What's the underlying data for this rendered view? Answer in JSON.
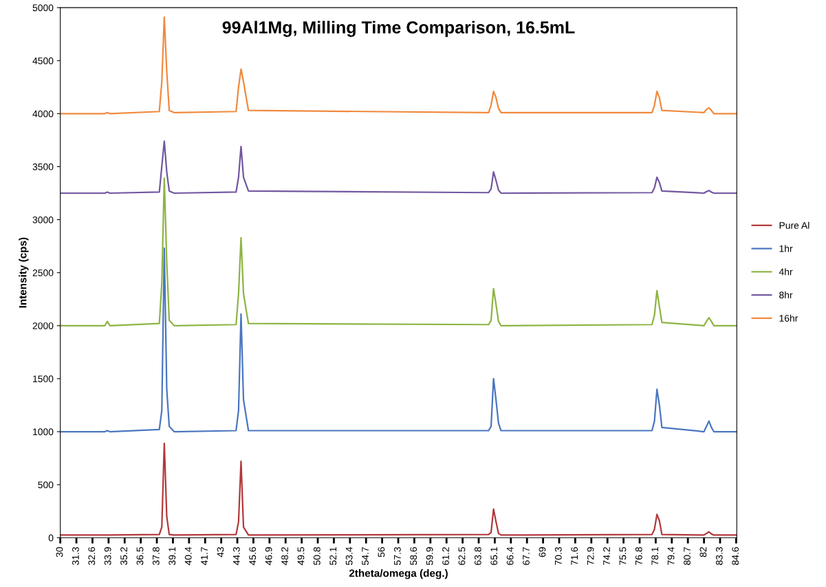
{
  "chart_data": {
    "type": "line",
    "title": "99Al1Mg, Milling Time Comparison, 16.5mL",
    "xlabel": "2theta/omega (deg.)",
    "ylabel": "Intensity (cps)",
    "x": [
      30,
      33.6,
      33.8,
      34.0,
      38.0,
      38.2,
      38.4,
      38.6,
      38.8,
      39.2,
      44.2,
      44.4,
      44.6,
      44.8,
      45.2,
      64.6,
      64.8,
      65.0,
      65.2,
      65.4,
      65.6,
      77.8,
      78.0,
      78.2,
      78.4,
      78.6,
      82.0,
      82.2,
      82.4,
      82.6,
      82.8,
      84.65
    ],
    "series": [
      {
        "name": "Pure Al",
        "color": "#b2383a",
        "values": [
          25,
          25,
          25,
          25,
          30,
          100,
          890,
          200,
          30,
          25,
          30,
          150,
          720,
          100,
          25,
          30,
          50,
          270,
          150,
          40,
          25,
          30,
          80,
          220,
          160,
          30,
          25,
          40,
          55,
          35,
          25,
          25
        ]
      },
      {
        "name": "1hr",
        "color": "#4a76c0",
        "values": [
          1000,
          1000,
          1010,
          1000,
          1020,
          1200,
          2730,
          1400,
          1050,
          1000,
          1010,
          1200,
          2110,
          1300,
          1010,
          1010,
          1050,
          1500,
          1300,
          1080,
          1010,
          1010,
          1100,
          1400,
          1250,
          1040,
          1000,
          1050,
          1100,
          1040,
          1000,
          1000
        ]
      },
      {
        "name": "4hr",
        "color": "#8db443",
        "values": [
          2000,
          2000,
          2040,
          2000,
          2020,
          2400,
          3390,
          2600,
          2050,
          2000,
          2010,
          2300,
          2830,
          2300,
          2020,
          2010,
          2050,
          2350,
          2200,
          2040,
          2000,
          2010,
          2100,
          2330,
          2180,
          2030,
          2000,
          2040,
          2075,
          2040,
          2000,
          2000
        ]
      },
      {
        "name": "8hr",
        "color": "#7257a0",
        "values": [
          3250,
          3250,
          3260,
          3250,
          3260,
          3500,
          3740,
          3450,
          3270,
          3250,
          3260,
          3400,
          3690,
          3400,
          3270,
          3255,
          3290,
          3450,
          3370,
          3280,
          3250,
          3255,
          3300,
          3400,
          3350,
          3270,
          3250,
          3265,
          3275,
          3260,
          3250,
          3250
        ]
      },
      {
        "name": "16hr",
        "color": "#f0893e",
        "values": [
          4000,
          4000,
          4010,
          4000,
          4020,
          4300,
          4910,
          4400,
          4030,
          4010,
          4020,
          4250,
          4420,
          4300,
          4030,
          4010,
          4080,
          4210,
          4150,
          4050,
          4010,
          4010,
          4080,
          4210,
          4150,
          4030,
          4010,
          4040,
          4055,
          4030,
          4000,
          4000
        ]
      }
    ],
    "xlim": [
      30,
      84.65
    ],
    "xticks": [
      30,
      31.3,
      32.6,
      33.9,
      35.2,
      36.5,
      37.8,
      39.1,
      40.4,
      41.7,
      43,
      44.3,
      45.6,
      46.9,
      48.2,
      49.5,
      50.8,
      52.1,
      53.4,
      54.7,
      56,
      57.3,
      58.6,
      59.9,
      61.2,
      62.5,
      63.8,
      65.1,
      66.4,
      67.7,
      69,
      70.3,
      71.6,
      72.9,
      74.2,
      75.5,
      76.8,
      78.1,
      79.4,
      80.7,
      82,
      83.3,
      84.6
    ],
    "ylim": [
      0,
      5000
    ],
    "yticks": [
      0,
      500,
      1000,
      1500,
      2000,
      2500,
      3000,
      3500,
      4000,
      4500,
      5000
    ],
    "grid": false,
    "legend": "right",
    "marker": "none",
    "line_style": "solid"
  }
}
